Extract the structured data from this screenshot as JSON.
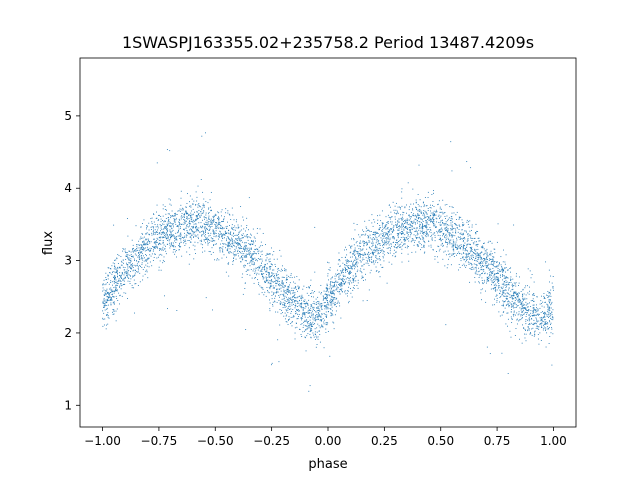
{
  "chart_data": {
    "type": "scatter",
    "title": "1SWASPJ163355.02+235758.2 Period 13487.4209s",
    "xlabel": "phase",
    "ylabel": "flux",
    "xlim": [
      -1.1,
      1.1
    ],
    "ylim": [
      0.7,
      5.8
    ],
    "xticks": [
      -1.0,
      -0.75,
      -0.5,
      -0.25,
      0.0,
      0.25,
      0.5,
      0.75,
      1.0
    ],
    "xtick_labels": [
      "−1.00",
      "−0.75",
      "−0.50",
      "−0.25",
      "0.00",
      "0.25",
      "0.50",
      "0.75",
      "1.00"
    ],
    "yticks": [
      1,
      2,
      3,
      4,
      5
    ],
    "ytick_labels": [
      "1",
      "2",
      "3",
      "4",
      "5"
    ],
    "grid": false,
    "legend": "none",
    "series": [
      {
        "color": "#1f77b4",
        "marker": "point",
        "trend": {
          "x": [
            -1.0,
            -0.9,
            -0.8,
            -0.7,
            -0.6,
            -0.5,
            -0.4,
            -0.3,
            -0.2,
            -0.1,
            -0.05,
            0.0,
            0.1,
            0.2,
            0.3,
            0.4,
            0.5,
            0.6,
            0.7,
            0.8,
            0.9,
            0.95,
            1.0
          ],
          "y": [
            2.4,
            2.9,
            3.2,
            3.42,
            3.52,
            3.45,
            3.25,
            2.95,
            2.55,
            2.28,
            2.2,
            2.45,
            2.92,
            3.22,
            3.42,
            3.52,
            3.45,
            3.25,
            2.95,
            2.55,
            2.28,
            2.2,
            2.42
          ]
        },
        "scatter_sigma": 0.18,
        "outlier_range": [
          0.95,
          5.55
        ]
      }
    ]
  }
}
